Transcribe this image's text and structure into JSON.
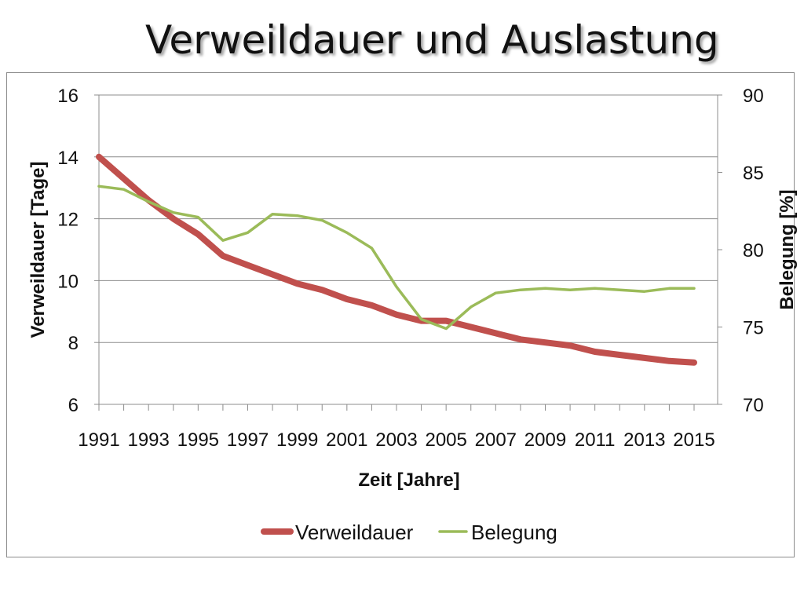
{
  "slide": {
    "title": "Verweildauer und Auslastung"
  },
  "chart_data": {
    "type": "line",
    "x": [
      1991,
      1992,
      1993,
      1994,
      1995,
      1996,
      1997,
      1998,
      1999,
      2000,
      2001,
      2002,
      2003,
      2004,
      2005,
      2006,
      2007,
      2008,
      2009,
      2010,
      2011,
      2012,
      2013,
      2014,
      2015
    ],
    "x_tick_labels": [
      "1991",
      "1993",
      "1995",
      "1997",
      "1999",
      "2001",
      "2003",
      "2005",
      "2007",
      "2009",
      "2011",
      "2013",
      "2015"
    ],
    "xlabel": "Zeit [Jahre]",
    "ylabel": "Verweildauer [Tage]",
    "ylim": [
      6,
      16
    ],
    "y_ticks": [
      6,
      8,
      10,
      12,
      14,
      16
    ],
    "y2label": "Belegung [%]",
    "y2lim": [
      70,
      90
    ],
    "y2_ticks": [
      70,
      75,
      80,
      85,
      90
    ],
    "grid": true,
    "legend_position": "bottom",
    "series": [
      {
        "name": "Verweildauer",
        "axis": "left",
        "color": "#c0504d",
        "values": [
          14.0,
          13.3,
          12.6,
          12.0,
          11.5,
          10.8,
          10.5,
          10.2,
          9.9,
          9.7,
          9.4,
          9.2,
          8.9,
          8.7,
          8.7,
          8.5,
          8.3,
          8.1,
          8.0,
          7.9,
          7.7,
          7.6,
          7.5,
          7.4,
          7.35
        ]
      },
      {
        "name": "Belegung",
        "axis": "right",
        "color": "#9bbb59",
        "values": [
          84.1,
          83.9,
          83.1,
          82.4,
          82.1,
          80.6,
          81.1,
          82.3,
          82.2,
          81.9,
          81.1,
          80.1,
          77.6,
          75.5,
          74.9,
          76.3,
          77.2,
          77.4,
          77.5,
          77.4,
          77.5,
          77.4,
          77.3,
          77.5,
          77.5
        ]
      }
    ]
  }
}
